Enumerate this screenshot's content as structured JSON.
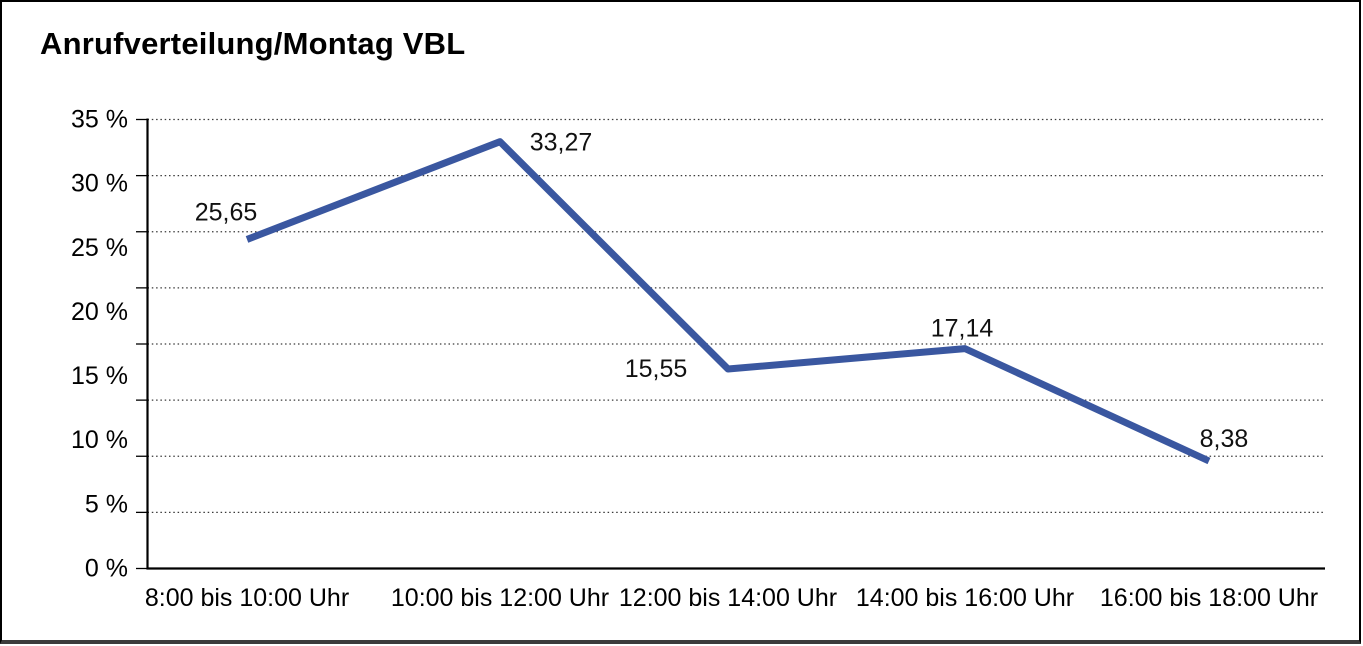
{
  "chart_data": {
    "type": "line",
    "title": "Anrufverteilung/Montag VBL",
    "categories": [
      "8:00 bis 10:00 Uhr",
      "10:00 bis 12:00 Uhr",
      "12:00 bis 14:00 Uhr",
      "14:00 bis 16:00 Uhr",
      "16:00 bis 18:00 Uhr"
    ],
    "series": [
      {
        "name": "Anrufverteilung Montag VBL",
        "values": [
          25.65,
          33.27,
          15.55,
          17.14,
          8.38
        ]
      }
    ],
    "point_labels": [
      "25,65",
      "33,27",
      "15,55",
      "17,14",
      "8,38"
    ],
    "xlabel": "",
    "ylabel": "",
    "ylim": [
      0,
      35
    ],
    "ytick_step": 5,
    "ytick_labels": [
      "0 %",
      "5 %",
      "10 %",
      "15 %",
      "20 %",
      "25 %",
      "30 %",
      "35 %"
    ],
    "grid": "horizontal dotted rules (8 dotted + solid zero baseline), no vertical grid",
    "legend": "none",
    "line_color": "#3A57A0",
    "axis_color": "#000000",
    "grid_color": "#3a3a3a",
    "label_color": "#111111"
  }
}
